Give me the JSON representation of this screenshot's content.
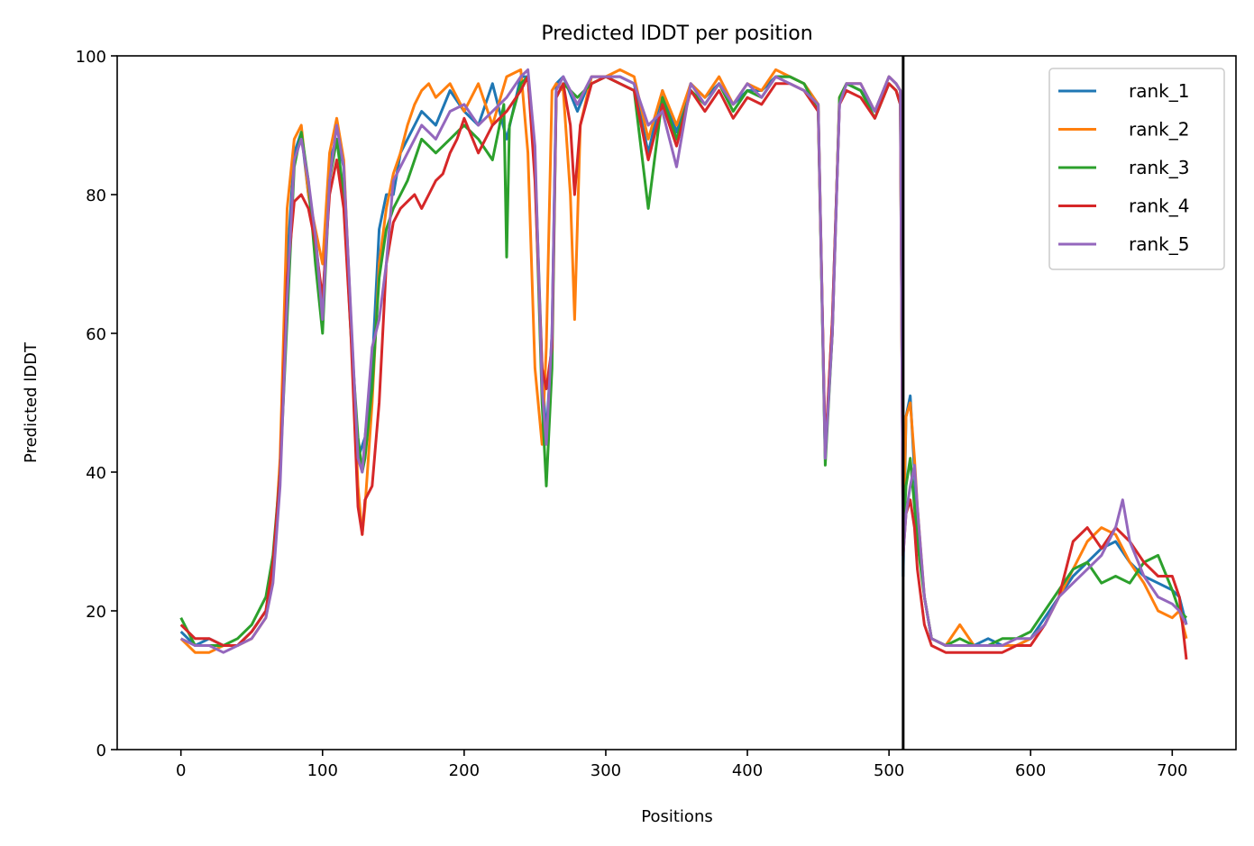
{
  "chart_data": {
    "type": "line",
    "title": "Predicted lDDT per position",
    "xlabel": "Positions",
    "ylabel": "Predicted lDDT",
    "xlim": [
      -45,
      745
    ],
    "ylim": [
      0,
      100
    ],
    "xticks": [
      "0",
      "100",
      "200",
      "300",
      "400",
      "500",
      "600",
      "700"
    ],
    "yticks": [
      "0",
      "20",
      "40",
      "60",
      "80",
      "100"
    ],
    "grid": false,
    "legend_position": "top-right",
    "vertical_line_x": 510,
    "series": [
      {
        "name": "rank_1",
        "color": "#1f77b4",
        "x": [
          0,
          10,
          20,
          30,
          40,
          50,
          60,
          65,
          70,
          75,
          80,
          85,
          90,
          95,
          100,
          105,
          110,
          115,
          120,
          125,
          130,
          135,
          140,
          145,
          150,
          155,
          160,
          165,
          170,
          175,
          180,
          190,
          200,
          210,
          220,
          230,
          240,
          245,
          250,
          255,
          258,
          262,
          265,
          270,
          280,
          290,
          300,
          310,
          320,
          330,
          340,
          350,
          360,
          370,
          380,
          390,
          400,
          410,
          420,
          430,
          440,
          450,
          455,
          460,
          465,
          470,
          480,
          490,
          500,
          505,
          508,
          509,
          510,
          512,
          515,
          518,
          520,
          525,
          530,
          540,
          550,
          560,
          570,
          580,
          590,
          600,
          610,
          620,
          630,
          640,
          650,
          660,
          670,
          680,
          690,
          700,
          705,
          710
        ],
        "y": [
          17,
          15,
          16,
          15,
          15,
          17,
          20,
          26,
          40,
          70,
          86,
          89,
          80,
          74,
          63,
          85,
          88,
          84,
          62,
          42,
          45,
          55,
          75,
          80,
          80,
          86,
          88,
          90,
          92,
          91,
          90,
          95,
          92,
          90,
          96,
          88,
          97,
          97,
          85,
          55,
          45,
          60,
          96,
          97,
          92,
          97,
          97,
          97,
          96,
          86,
          95,
          89,
          96,
          94,
          96,
          93,
          95,
          95,
          97,
          97,
          96,
          93,
          42,
          62,
          93,
          96,
          95,
          92,
          97,
          96,
          95,
          92,
          25,
          48,
          51,
          40,
          33,
          22,
          16,
          15,
          15,
          15,
          16,
          15,
          15,
          16,
          19,
          22,
          25,
          27,
          29,
          30,
          27,
          25,
          24,
          23,
          22,
          18
        ]
      },
      {
        "name": "rank_2",
        "color": "#ff7f0e",
        "x": [
          0,
          10,
          20,
          30,
          40,
          50,
          60,
          65,
          70,
          75,
          80,
          85,
          90,
          95,
          100,
          105,
          110,
          115,
          120,
          125,
          128,
          130,
          135,
          140,
          145,
          150,
          155,
          160,
          165,
          170,
          175,
          180,
          190,
          200,
          210,
          220,
          230,
          240,
          245,
          250,
          255,
          258,
          262,
          265,
          270,
          275,
          278,
          282,
          290,
          300,
          310,
          320,
          330,
          340,
          350,
          360,
          370,
          380,
          390,
          400,
          410,
          420,
          430,
          440,
          450,
          455,
          460,
          465,
          470,
          480,
          490,
          500,
          505,
          508,
          510,
          512,
          515,
          518,
          520,
          525,
          530,
          540,
          550,
          560,
          570,
          580,
          590,
          600,
          610,
          620,
          630,
          640,
          650,
          660,
          670,
          680,
          690,
          700,
          705,
          710
        ],
        "y": [
          16,
          14,
          14,
          15,
          15,
          16,
          19,
          25,
          42,
          78,
          88,
          90,
          80,
          75,
          70,
          86,
          91,
          85,
          62,
          38,
          31,
          35,
          50,
          70,
          78,
          83,
          86,
          90,
          93,
          95,
          96,
          94,
          96,
          92,
          96,
          90,
          97,
          98,
          86,
          55,
          44,
          58,
          95,
          96,
          95,
          80,
          62,
          90,
          97,
          97,
          98,
          97,
          88,
          95,
          90,
          96,
          94,
          97,
          93,
          96,
          95,
          98,
          97,
          96,
          93,
          43,
          60,
          94,
          96,
          96,
          92,
          97,
          96,
          95,
          30,
          48,
          50,
          42,
          35,
          22,
          16,
          15,
          18,
          15,
          15,
          15,
          15,
          16,
          18,
          22,
          26,
          30,
          32,
          31,
          27,
          24,
          20,
          19,
          20,
          16
        ]
      },
      {
        "name": "rank_3",
        "color": "#2ca02c",
        "x": [
          0,
          10,
          20,
          30,
          40,
          50,
          60,
          65,
          70,
          75,
          80,
          85,
          90,
          95,
          100,
          105,
          110,
          115,
          120,
          125,
          128,
          130,
          135,
          140,
          145,
          150,
          155,
          160,
          165,
          170,
          175,
          180,
          190,
          200,
          210,
          220,
          228,
          230,
          232,
          240,
          245,
          250,
          255,
          258,
          262,
          265,
          270,
          280,
          290,
          300,
          310,
          320,
          330,
          340,
          350,
          360,
          370,
          380,
          390,
          400,
          410,
          420,
          430,
          440,
          450,
          455,
          460,
          465,
          470,
          480,
          490,
          500,
          505,
          508,
          510,
          512,
          515,
          518,
          520,
          525,
          530,
          540,
          550,
          560,
          570,
          580,
          590,
          600,
          610,
          620,
          630,
          640,
          650,
          660,
          670,
          680,
          690,
          700,
          705,
          710
        ],
        "y": [
          19,
          15,
          15,
          15,
          16,
          18,
          22,
          28,
          40,
          62,
          84,
          89,
          82,
          70,
          60,
          82,
          88,
          80,
          60,
          45,
          40,
          42,
          52,
          68,
          75,
          78,
          80,
          82,
          85,
          88,
          87,
          86,
          88,
          90,
          88,
          85,
          93,
          71,
          90,
          96,
          97,
          84,
          50,
          38,
          55,
          94,
          96,
          94,
          96,
          97,
          96,
          95,
          78,
          94,
          88,
          95,
          93,
          96,
          92,
          95,
          94,
          97,
          97,
          96,
          92,
          41,
          60,
          94,
          96,
          95,
          91,
          96,
          95,
          93,
          30,
          38,
          42,
          35,
          30,
          22,
          16,
          15,
          16,
          15,
          15,
          16,
          16,
          17,
          20,
          23,
          26,
          27,
          24,
          25,
          24,
          27,
          28,
          23,
          20,
          19
        ]
      },
      {
        "name": "rank_4",
        "color": "#d62728",
        "x": [
          0,
          10,
          20,
          30,
          40,
          50,
          60,
          65,
          70,
          75,
          80,
          85,
          90,
          95,
          100,
          105,
          110,
          115,
          120,
          125,
          128,
          130,
          135,
          140,
          145,
          150,
          155,
          160,
          165,
          170,
          175,
          180,
          185,
          190,
          195,
          200,
          210,
          220,
          230,
          240,
          245,
          250,
          255,
          258,
          262,
          265,
          270,
          275,
          278,
          282,
          290,
          300,
          310,
          320,
          330,
          340,
          350,
          360,
          370,
          380,
          390,
          400,
          410,
          420,
          430,
          440,
          450,
          455,
          460,
          465,
          470,
          480,
          490,
          500,
          505,
          508,
          510,
          512,
          515,
          518,
          520,
          525,
          530,
          540,
          550,
          560,
          570,
          580,
          590,
          600,
          610,
          620,
          630,
          640,
          650,
          660,
          670,
          680,
          690,
          700,
          705,
          710
        ],
        "y": [
          18,
          16,
          16,
          15,
          15,
          17,
          20,
          27,
          40,
          68,
          79,
          80,
          78,
          73,
          65,
          80,
          85,
          78,
          60,
          35,
          31,
          36,
          38,
          50,
          70,
          76,
          78,
          79,
          80,
          78,
          80,
          82,
          83,
          86,
          88,
          91,
          86,
          90,
          92,
          95,
          97,
          82,
          55,
          52,
          58,
          94,
          96,
          90,
          80,
          90,
          96,
          97,
          96,
          95,
          85,
          93,
          87,
          95,
          92,
          95,
          91,
          94,
          93,
          96,
          96,
          95,
          92,
          43,
          62,
          93,
          95,
          94,
          91,
          96,
          95,
          93,
          28,
          34,
          36,
          32,
          26,
          18,
          15,
          14,
          14,
          14,
          14,
          14,
          15,
          15,
          18,
          22,
          30,
          32,
          29,
          32,
          30,
          27,
          25,
          25,
          22,
          13
        ]
      },
      {
        "name": "rank_5",
        "color": "#9467bd",
        "x": [
          0,
          10,
          20,
          30,
          40,
          50,
          60,
          65,
          70,
          75,
          80,
          85,
          90,
          95,
          100,
          105,
          110,
          115,
          120,
          125,
          128,
          130,
          135,
          140,
          145,
          150,
          155,
          160,
          165,
          170,
          175,
          180,
          190,
          200,
          210,
          220,
          230,
          240,
          245,
          250,
          255,
          258,
          262,
          265,
          270,
          280,
          290,
          300,
          310,
          320,
          330,
          340,
          350,
          360,
          370,
          380,
          390,
          400,
          410,
          420,
          430,
          440,
          450,
          455,
          460,
          465,
          470,
          480,
          490,
          500,
          505,
          508,
          510,
          512,
          515,
          518,
          520,
          525,
          530,
          540,
          550,
          560,
          570,
          580,
          590,
          600,
          610,
          620,
          630,
          640,
          650,
          660,
          665,
          670,
          680,
          690,
          700,
          705,
          710
        ],
        "y": [
          16,
          15,
          15,
          14,
          15,
          16,
          19,
          24,
          38,
          65,
          85,
          88,
          82,
          74,
          62,
          82,
          90,
          84,
          63,
          42,
          40,
          45,
          58,
          62,
          70,
          82,
          84,
          86,
          88,
          90,
          89,
          88,
          92,
          93,
          90,
          92,
          94,
          97,
          98,
          87,
          52,
          44,
          60,
          95,
          97,
          93,
          97,
          97,
          97,
          96,
          90,
          92,
          84,
          96,
          93,
          96,
          93,
          96,
          94,
          97,
          96,
          95,
          93,
          42,
          60,
          93,
          96,
          96,
          92,
          97,
          96,
          95,
          28,
          34,
          38,
          41,
          35,
          22,
          16,
          15,
          15,
          15,
          15,
          15,
          16,
          16,
          18,
          22,
          24,
          26,
          28,
          32,
          36,
          30,
          25,
          22,
          21,
          20,
          18
        ]
      }
    ]
  }
}
